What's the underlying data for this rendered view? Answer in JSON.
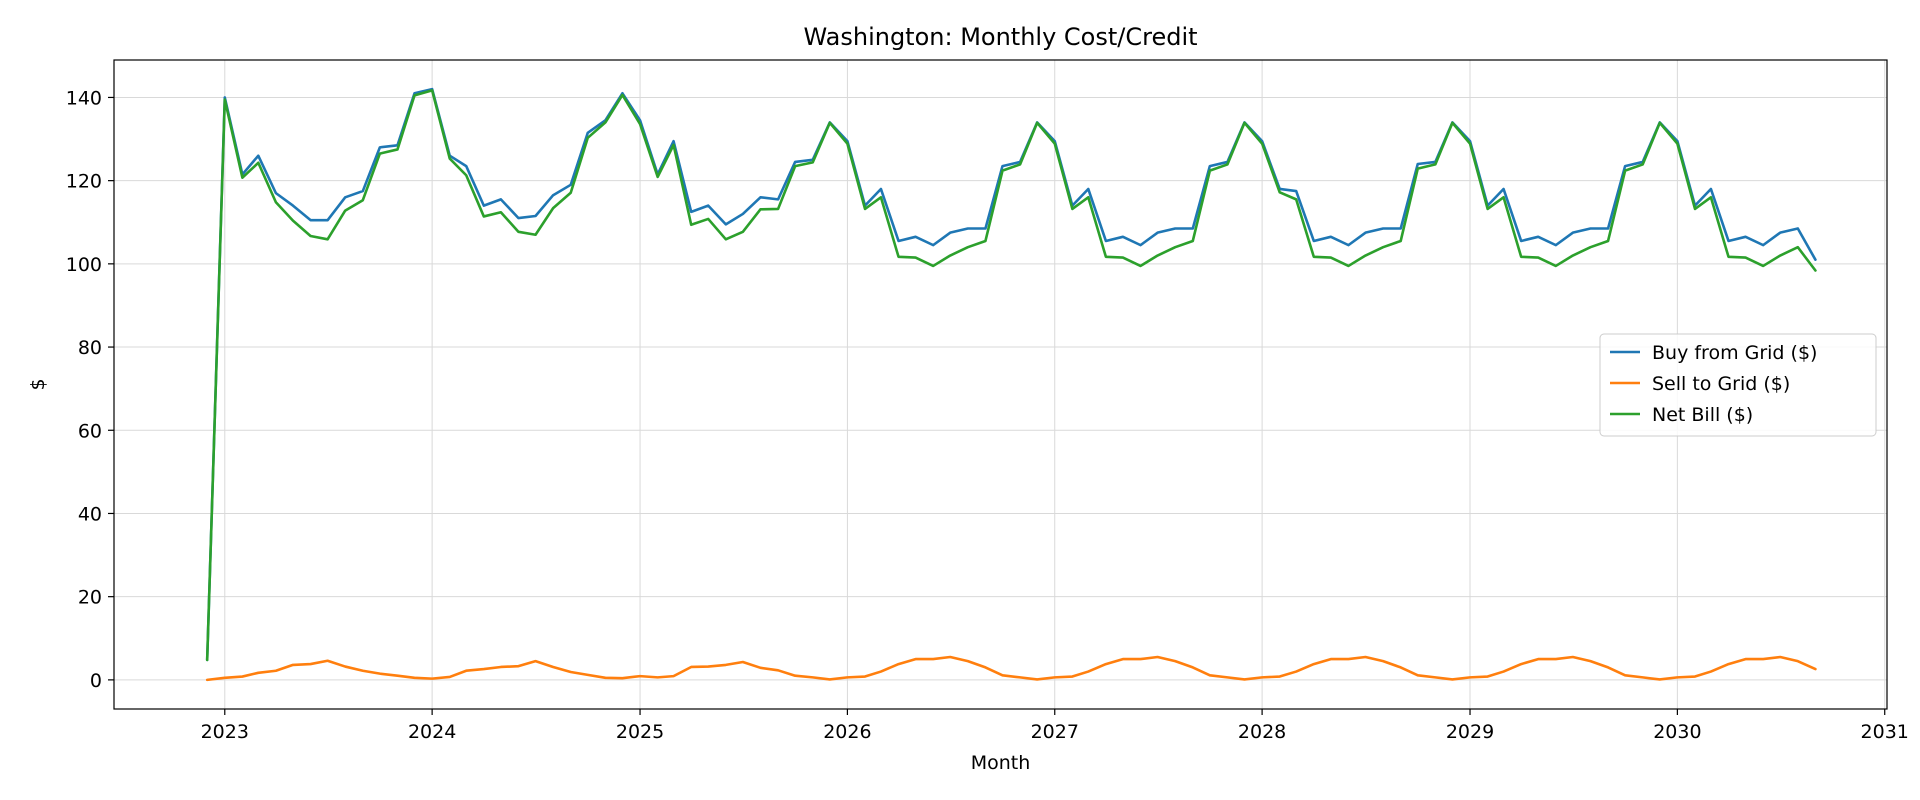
{
  "chart_data": {
    "type": "line",
    "title": "Washington: Monthly Cost/Credit",
    "xlabel": "Month",
    "ylabel": "$",
    "xlim": [
      "2022-06-20",
      "2031-01-05"
    ],
    "ylim": [
      -7,
      149
    ],
    "x_ticks": [
      "2023",
      "2024",
      "2025",
      "2026",
      "2027",
      "2028",
      "2029",
      "2030",
      "2031"
    ],
    "y_ticks": [
      0,
      20,
      40,
      60,
      80,
      100,
      120,
      140
    ],
    "grid": true,
    "legend_position": "right",
    "x": [
      "2022-12",
      "2023-01",
      "2023-02",
      "2023-03",
      "2023-04",
      "2023-05",
      "2023-06",
      "2023-07",
      "2023-08",
      "2023-09",
      "2023-10",
      "2023-11",
      "2023-12",
      "2024-01",
      "2024-02",
      "2024-03",
      "2024-04",
      "2024-05",
      "2024-06",
      "2024-07",
      "2024-08",
      "2024-09",
      "2024-10",
      "2024-11",
      "2024-12",
      "2025-01",
      "2025-02",
      "2025-03",
      "2025-04",
      "2025-05",
      "2025-06",
      "2025-07",
      "2025-08",
      "2025-09",
      "2025-10",
      "2025-11",
      "2025-12",
      "2026-01",
      "2026-02",
      "2026-03",
      "2026-04",
      "2026-05",
      "2026-06",
      "2026-07",
      "2026-08",
      "2026-09",
      "2026-10",
      "2026-11",
      "2026-12",
      "2027-01",
      "2027-02",
      "2027-03",
      "2027-04",
      "2027-05",
      "2027-06",
      "2027-07",
      "2027-08",
      "2027-09",
      "2027-10",
      "2027-11",
      "2027-12",
      "2028-01",
      "2028-02",
      "2028-03",
      "2028-04",
      "2028-05",
      "2028-06",
      "2028-07",
      "2028-08",
      "2028-09",
      "2028-10",
      "2028-11",
      "2028-12",
      "2029-01",
      "2029-02",
      "2029-03",
      "2029-04",
      "2029-05",
      "2029-06",
      "2029-07",
      "2029-08",
      "2029-09",
      "2029-10",
      "2029-11",
      "2029-12",
      "2030-01",
      "2030-02",
      "2030-03",
      "2030-04",
      "2030-05",
      "2030-06",
      "2030-07",
      "2030-08",
      "2030-09"
    ],
    "series": [
      {
        "name": "Buy from Grid ($)",
        "color": "#1f77b4",
        "values": [
          4.8,
          140.0,
          121.5,
          126.0,
          117.0,
          114.0,
          110.5,
          110.5,
          116.0,
          117.5,
          128.0,
          128.5,
          141.0,
          142.0,
          126.0,
          123.5,
          114.0,
          115.5,
          111.0,
          111.5,
          116.5,
          119.0,
          131.5,
          134.5,
          141.0,
          134.5,
          121.5,
          129.5,
          112.5,
          114.0,
          109.5,
          112.0,
          116.0,
          115.5,
          124.5,
          125.0,
          134.0,
          129.5,
          114.0,
          118.0,
          105.5,
          106.5,
          104.5,
          107.5,
          108.5,
          108.5,
          123.5,
          124.5,
          134.0,
          129.5,
          114.0,
          118.0,
          105.5,
          106.5,
          104.5,
          107.5,
          108.5,
          108.5,
          123.5,
          124.5,
          134.0,
          129.5,
          118.0,
          117.5,
          105.5,
          106.5,
          104.5,
          107.5,
          108.5,
          108.5,
          124.0,
          124.5,
          134.0,
          129.5,
          114.0,
          118.0,
          105.5,
          106.5,
          104.5,
          107.5,
          108.5,
          108.5,
          123.5,
          124.5,
          134.0,
          129.5,
          114.0,
          118.0,
          105.5,
          106.5,
          104.5,
          107.5,
          108.5,
          101.0
        ]
      },
      {
        "name": "Sell to Grid ($)",
        "color": "#ff7f0e",
        "values": [
          0.0,
          0.5,
          0.8,
          1.7,
          2.2,
          3.6,
          3.8,
          4.6,
          3.2,
          2.2,
          1.5,
          1.0,
          0.5,
          0.3,
          0.7,
          2.2,
          2.6,
          3.1,
          3.3,
          4.5,
          3.1,
          1.9,
          1.2,
          0.5,
          0.4,
          0.9,
          0.6,
          0.9,
          3.1,
          3.2,
          3.6,
          4.3,
          2.9,
          2.3,
          1.0,
          0.6,
          0.1,
          0.6,
          0.8,
          2.0,
          3.8,
          5.0,
          5.0,
          5.5,
          4.5,
          3.0,
          1.1,
          0.6,
          0.1,
          0.6,
          0.8,
          2.0,
          3.8,
          5.0,
          5.0,
          5.5,
          4.5,
          3.0,
          1.1,
          0.6,
          0.1,
          0.6,
          0.8,
          2.0,
          3.8,
          5.0,
          5.0,
          5.5,
          4.5,
          3.0,
          1.1,
          0.6,
          0.1,
          0.6,
          0.8,
          2.0,
          3.8,
          5.0,
          5.0,
          5.5,
          4.5,
          3.0,
          1.1,
          0.6,
          0.1,
          0.6,
          0.8,
          2.0,
          3.8,
          5.0,
          5.0,
          5.5,
          4.5,
          2.6
        ]
      },
      {
        "name": "Net Bill ($)",
        "color": "#2ca02c",
        "values": [
          4.8,
          139.5,
          120.7,
          124.3,
          114.8,
          110.4,
          106.7,
          105.9,
          112.8,
          115.3,
          126.5,
          127.5,
          140.5,
          141.7,
          125.3,
          121.3,
          111.4,
          112.4,
          107.7,
          107.0,
          113.4,
          117.1,
          130.3,
          134.0,
          140.6,
          133.6,
          120.9,
          128.6,
          109.4,
          110.8,
          105.9,
          107.7,
          113.1,
          113.2,
          123.5,
          124.4,
          133.9,
          128.9,
          113.2,
          116.0,
          101.7,
          101.5,
          99.5,
          102.0,
          104.0,
          105.5,
          122.4,
          123.9,
          133.9,
          128.9,
          113.2,
          116.0,
          101.7,
          101.5,
          99.5,
          102.0,
          104.0,
          105.5,
          122.4,
          123.9,
          133.9,
          128.9,
          117.2,
          115.5,
          101.7,
          101.5,
          99.5,
          102.0,
          104.0,
          105.5,
          122.9,
          123.9,
          133.9,
          128.9,
          113.2,
          116.0,
          101.7,
          101.5,
          99.5,
          102.0,
          104.0,
          105.5,
          122.4,
          123.9,
          133.9,
          128.9,
          113.2,
          116.0,
          101.7,
          101.5,
          99.5,
          102.0,
          104.0,
          98.4
        ]
      }
    ]
  }
}
